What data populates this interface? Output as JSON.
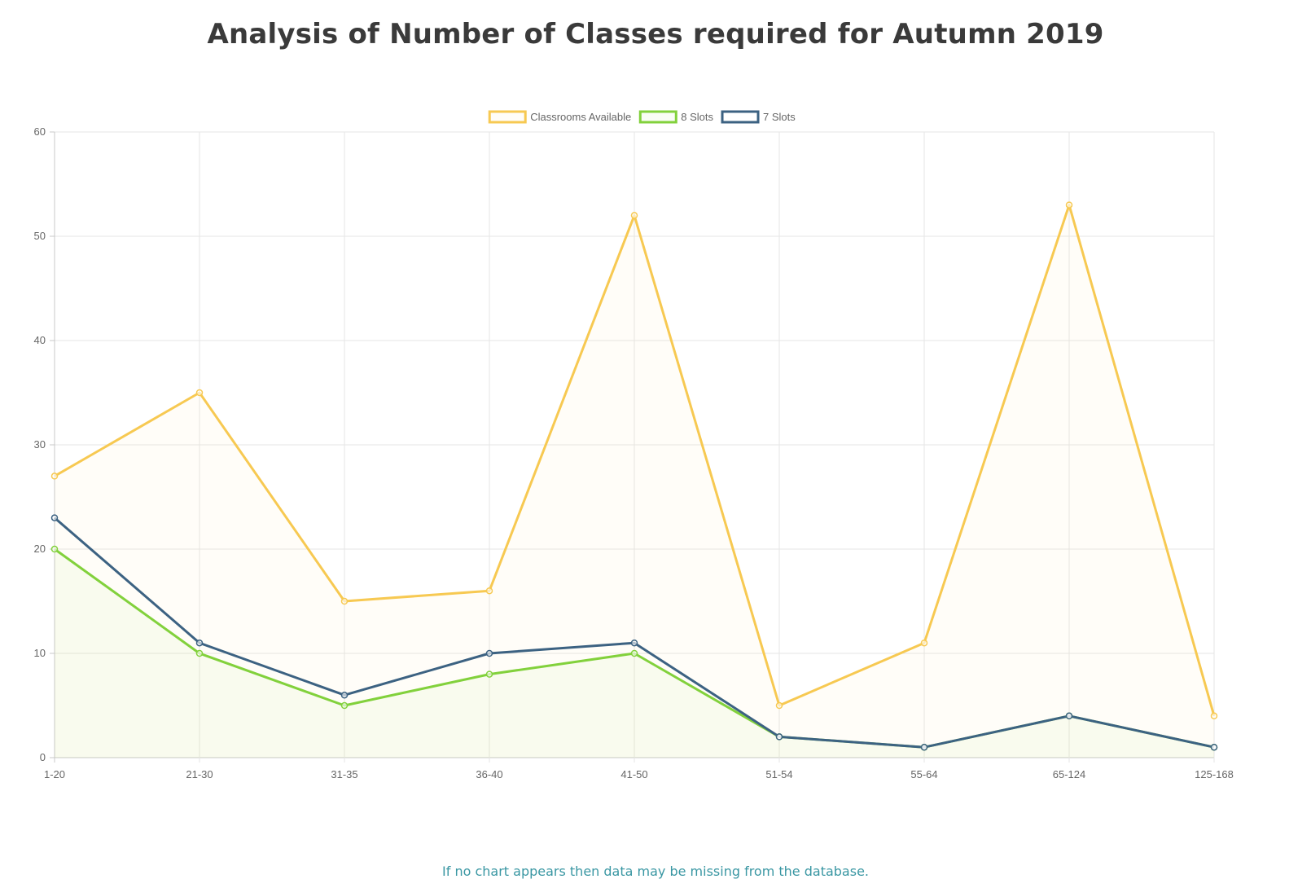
{
  "page": {
    "title": "Analysis of Number of Classes required for Autumn 2019",
    "footer": "If no chart appears then data may be missing from the database."
  },
  "chart_data": {
    "type": "line",
    "title": "",
    "xlabel": "",
    "ylabel": "",
    "categories": [
      "1-20",
      "21-30",
      "31-35",
      "36-40",
      "41-50",
      "51-54",
      "55-64",
      "65-124",
      "125-168"
    ],
    "ylim": [
      0,
      60
    ],
    "yticks": [
      0,
      10,
      20,
      30,
      40,
      50,
      60
    ],
    "grid": true,
    "legend_position": "top-center",
    "series": [
      {
        "name": "Classrooms Available",
        "color": "#f7c952",
        "fill": "rgba(247,201,82,0.04)",
        "values": [
          27,
          35,
          15,
          16,
          52,
          5,
          11,
          53,
          4
        ]
      },
      {
        "name": "8 Slots",
        "color": "#82d13c",
        "fill": "rgba(130,209,60,0.05)",
        "values": [
          20,
          10,
          5,
          8,
          10,
          2,
          1,
          4,
          1
        ]
      },
      {
        "name": "7 Slots",
        "color": "#3c6282",
        "fill": "rgba(60,98,130,0.0)",
        "values": [
          23,
          11,
          6,
          10,
          11,
          2,
          1,
          4,
          1
        ]
      }
    ]
  }
}
